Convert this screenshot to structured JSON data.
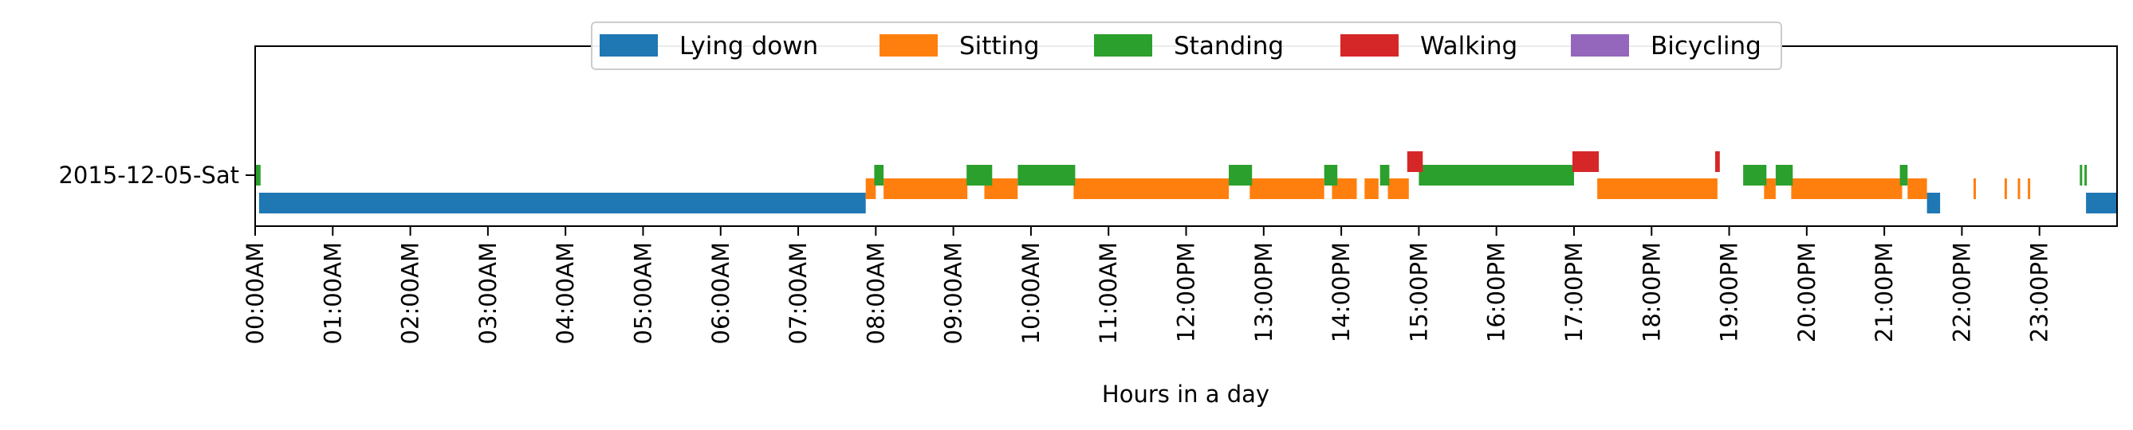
{
  "chart_data": {
    "type": "bar",
    "subtype": "broken-horizontal-timeline",
    "xlabel": "Hours in a day",
    "xlim": [
      0,
      24
    ],
    "x_unit": "hour",
    "x_ticks": [
      {
        "value": 0,
        "label": "00:00AM"
      },
      {
        "value": 1,
        "label": "01:00AM"
      },
      {
        "value": 2,
        "label": "02:00AM"
      },
      {
        "value": 3,
        "label": "03:00AM"
      },
      {
        "value": 4,
        "label": "04:00AM"
      },
      {
        "value": 5,
        "label": "05:00AM"
      },
      {
        "value": 6,
        "label": "06:00AM"
      },
      {
        "value": 7,
        "label": "07:00AM"
      },
      {
        "value": 8,
        "label": "08:00AM"
      },
      {
        "value": 9,
        "label": "09:00AM"
      },
      {
        "value": 10,
        "label": "10:00AM"
      },
      {
        "value": 11,
        "label": "11:00AM"
      },
      {
        "value": 12,
        "label": "12:00PM"
      },
      {
        "value": 13,
        "label": "13:00PM"
      },
      {
        "value": 14,
        "label": "14:00PM"
      },
      {
        "value": 15,
        "label": "15:00PM"
      },
      {
        "value": 16,
        "label": "16:00PM"
      },
      {
        "value": 17,
        "label": "17:00PM"
      },
      {
        "value": 18,
        "label": "18:00PM"
      },
      {
        "value": 19,
        "label": "19:00PM"
      },
      {
        "value": 20,
        "label": "20:00PM"
      },
      {
        "value": 21,
        "label": "21:00PM"
      },
      {
        "value": 22,
        "label": "22:00PM"
      },
      {
        "value": 23,
        "label": "23:00PM"
      }
    ],
    "y_categories": [
      "2015-12-05-Sat"
    ],
    "legend_position": "top-center",
    "grid": false,
    "series": [
      {
        "name": "Lying down",
        "color": "#1f77b4",
        "intervals": [
          [
            0.05,
            7.87
          ],
          [
            21.55,
            21.72
          ],
          [
            23.6,
            24.0
          ]
        ]
      },
      {
        "name": "Sitting",
        "color": "#ff7f0e",
        "intervals": [
          [
            7.87,
            8.0
          ],
          [
            8.1,
            9.18
          ],
          [
            9.4,
            9.83
          ],
          [
            10.55,
            12.55
          ],
          [
            12.82,
            13.78
          ],
          [
            13.88,
            14.2
          ],
          [
            14.3,
            14.48
          ],
          [
            14.6,
            14.87
          ],
          [
            17.3,
            18.85
          ],
          [
            19.45,
            19.6
          ],
          [
            19.8,
            21.23
          ],
          [
            21.3,
            21.55
          ],
          [
            22.15,
            22.17
          ],
          [
            22.55,
            22.58
          ],
          [
            22.72,
            22.74
          ],
          [
            22.85,
            22.87
          ]
        ]
      },
      {
        "name": "Standing",
        "color": "#2ca02c",
        "intervals": [
          [
            0.0,
            0.07
          ],
          [
            7.98,
            8.1
          ],
          [
            9.17,
            9.5
          ],
          [
            9.83,
            10.57
          ],
          [
            12.55,
            12.85
          ],
          [
            13.78,
            13.95
          ],
          [
            14.5,
            14.62
          ],
          [
            15.0,
            17.0
          ],
          [
            19.18,
            19.48
          ],
          [
            19.6,
            19.82
          ],
          [
            21.2,
            21.3
          ],
          [
            23.52,
            23.55
          ],
          [
            23.58,
            23.61
          ]
        ]
      },
      {
        "name": "Walking",
        "color": "#d62728",
        "intervals": [
          [
            14.85,
            15.05
          ],
          [
            16.98,
            17.32
          ],
          [
            18.82,
            18.88
          ]
        ]
      },
      {
        "name": "Bicycling",
        "color": "#9467bd",
        "intervals": []
      }
    ]
  }
}
